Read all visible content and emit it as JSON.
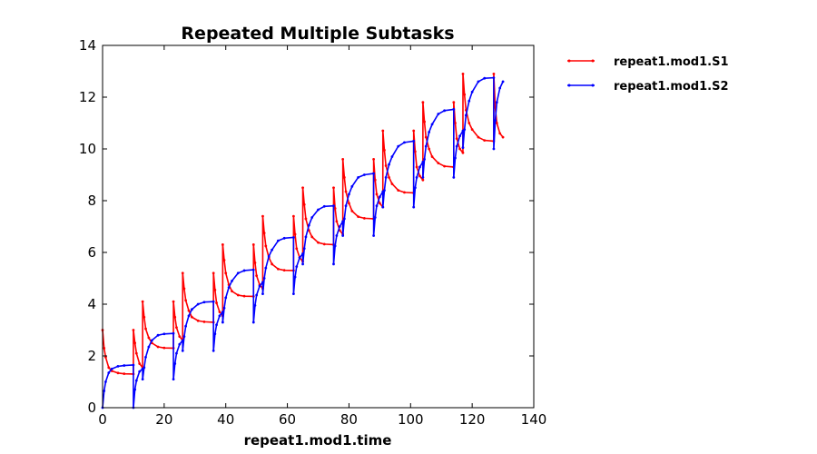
{
  "chart_data": {
    "type": "line",
    "title": "Repeated Multiple Subtasks",
    "xlabel": "repeat1.mod1.time",
    "ylabel": "",
    "xlim": [
      0,
      140
    ],
    "ylim": [
      0,
      14
    ],
    "xticks": [
      0,
      20,
      40,
      60,
      80,
      100,
      120,
      140
    ],
    "yticks": [
      0,
      2,
      4,
      6,
      8,
      10,
      12,
      14
    ],
    "grid": false,
    "legend": "outside-top-right",
    "series": [
      {
        "name": "repeat1.mod1.S1",
        "color": "#ff0000",
        "x": [
          0,
          0.5,
          1,
          2,
          3,
          5,
          7,
          10,
          10.01,
          10.5,
          11,
          12,
          13,
          13.01,
          13.5,
          14,
          15,
          16,
          18,
          20,
          23,
          23.01,
          23.5,
          24,
          25,
          26,
          26.01,
          26.5,
          27,
          28,
          29,
          31,
          33,
          36,
          36.01,
          36.5,
          37,
          38,
          39,
          39.01,
          39.5,
          40,
          41,
          42,
          44,
          46,
          49,
          49.01,
          49.5,
          50,
          51,
          52,
          52.01,
          52.5,
          53,
          54,
          55,
          57,
          59,
          62,
          62.01,
          62.5,
          63,
          64,
          65,
          65.01,
          65.5,
          66,
          67,
          68,
          70,
          72,
          75,
          75.01,
          75.5,
          76,
          77,
          78,
          78.01,
          78.5,
          79,
          80,
          81,
          83,
          85,
          88,
          88.01,
          88.5,
          89,
          90,
          91,
          91.01,
          91.5,
          92,
          93,
          94,
          96,
          98,
          101,
          101.01,
          101.5,
          102,
          103,
          104,
          104.01,
          104.5,
          105,
          106,
          107,
          109,
          111,
          114,
          114.01,
          114.5,
          115,
          116,
          117,
          117.01,
          117.5,
          118,
          119,
          120,
          122,
          124,
          127,
          127.01,
          127.5,
          128,
          129,
          130
        ],
        "values": [
          3.0,
          2.3,
          1.95,
          1.55,
          1.42,
          1.34,
          1.31,
          1.3,
          3.0,
          2.5,
          2.1,
          1.7,
          1.55,
          4.1,
          3.5,
          3.05,
          2.7,
          2.5,
          2.35,
          2.31,
          2.3,
          4.1,
          3.5,
          3.1,
          2.75,
          2.6,
          5.2,
          4.6,
          4.15,
          3.75,
          3.5,
          3.36,
          3.32,
          3.3,
          5.2,
          4.55,
          4.05,
          3.7,
          3.55,
          6.3,
          5.7,
          5.2,
          4.75,
          4.5,
          4.35,
          4.31,
          4.3,
          6.3,
          5.6,
          5.1,
          4.75,
          4.6,
          7.4,
          6.75,
          6.25,
          5.8,
          5.55,
          5.36,
          5.31,
          5.3,
          7.4,
          6.7,
          6.15,
          5.8,
          5.65,
          8.5,
          7.85,
          7.3,
          6.85,
          6.6,
          6.38,
          6.32,
          6.3,
          8.5,
          7.7,
          7.2,
          6.85,
          6.7,
          9.6,
          8.9,
          8.35,
          7.9,
          7.6,
          7.38,
          7.32,
          7.3,
          9.6,
          8.8,
          8.25,
          7.9,
          7.75,
          10.7,
          9.95,
          9.35,
          8.9,
          8.65,
          8.4,
          8.32,
          8.3,
          10.7,
          9.9,
          9.3,
          8.95,
          8.8,
          11.8,
          11.05,
          10.45,
          10.0,
          9.7,
          9.45,
          9.33,
          9.3,
          11.8,
          11.0,
          10.4,
          10.0,
          9.85,
          12.9,
          12.1,
          11.5,
          11.0,
          10.75,
          10.45,
          10.33,
          10.3,
          12.9,
          11.6,
          11.0,
          10.6,
          10.45
        ]
      },
      {
        "name": "repeat1.mod1.S2",
        "color": "#0000ff",
        "x": [
          0,
          0.5,
          1,
          2,
          3,
          5,
          7,
          10,
          10.01,
          10.5,
          11,
          12,
          13,
          13.01,
          13.5,
          14,
          15,
          16,
          18,
          20,
          23,
          23.01,
          23.5,
          24,
          25,
          26,
          26.01,
          26.5,
          27,
          28,
          29,
          31,
          33,
          36,
          36.01,
          36.5,
          37,
          38,
          39,
          39.01,
          39.5,
          40,
          41,
          42,
          44,
          46,
          49,
          49.01,
          49.5,
          50,
          51,
          52,
          52.01,
          52.5,
          53,
          54,
          55,
          57,
          59,
          62,
          62.01,
          62.5,
          63,
          64,
          65,
          65.01,
          65.5,
          66,
          67,
          68,
          70,
          72,
          75,
          75.01,
          75.5,
          76,
          77,
          78,
          78.01,
          78.5,
          79,
          80,
          81,
          83,
          85,
          88,
          88.01,
          88.5,
          89,
          90,
          91,
          91.01,
          91.5,
          92,
          93,
          94,
          96,
          98,
          101,
          101.01,
          101.5,
          102,
          103,
          104,
          104.01,
          104.5,
          105,
          106,
          107,
          109,
          111,
          114,
          114.01,
          114.5,
          115,
          116,
          117,
          117.01,
          117.5,
          118,
          119,
          120,
          122,
          124,
          127,
          127.01,
          127.5,
          128,
          129,
          130
        ],
        "values": [
          0.0,
          0.65,
          1.0,
          1.35,
          1.5,
          1.6,
          1.63,
          1.65,
          0.0,
          0.7,
          1.05,
          1.4,
          1.5,
          1.1,
          1.55,
          1.95,
          2.35,
          2.6,
          2.8,
          2.85,
          2.87,
          1.1,
          1.7,
          2.1,
          2.45,
          2.6,
          2.2,
          2.75,
          3.15,
          3.55,
          3.8,
          4.0,
          4.08,
          4.1,
          2.2,
          2.85,
          3.2,
          3.55,
          3.7,
          3.3,
          3.85,
          4.25,
          4.65,
          4.9,
          5.2,
          5.3,
          5.33,
          3.3,
          3.95,
          4.35,
          4.7,
          4.85,
          4.4,
          5.0,
          5.4,
          5.85,
          6.1,
          6.45,
          6.55,
          6.58,
          4.4,
          5.05,
          5.45,
          5.8,
          5.95,
          5.55,
          6.15,
          6.6,
          7.05,
          7.35,
          7.65,
          7.78,
          7.8,
          5.55,
          6.25,
          6.65,
          7.0,
          7.2,
          6.65,
          7.3,
          7.8,
          8.25,
          8.55,
          8.9,
          9.0,
          9.05,
          6.65,
          7.35,
          7.8,
          8.15,
          8.35,
          7.75,
          8.4,
          8.9,
          9.4,
          9.7,
          10.1,
          10.25,
          10.3,
          7.75,
          8.5,
          8.9,
          9.3,
          9.5,
          8.9,
          9.6,
          10.1,
          10.65,
          10.95,
          11.35,
          11.48,
          11.53,
          8.9,
          9.65,
          10.1,
          10.5,
          10.7,
          10.05,
          10.75,
          11.3,
          11.85,
          12.2,
          12.6,
          12.73,
          12.75,
          10.0,
          11.1,
          11.8,
          12.35,
          12.6
        ]
      }
    ]
  }
}
